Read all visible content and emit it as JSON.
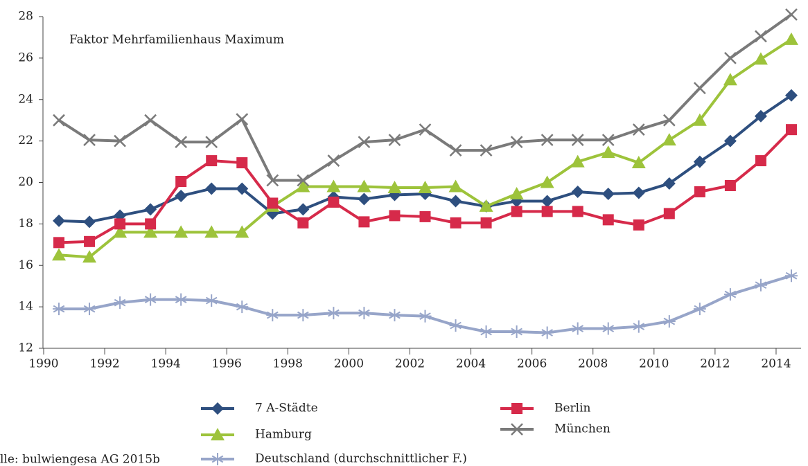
{
  "chart_data": {
    "type": "line",
    "annotation": "Faktor Mehrfamilienhaus Maximum",
    "source": "lle: bulwiengesa AG 2015b",
    "x": [
      1990.5,
      1991.5,
      1992.5,
      1993.5,
      1994.5,
      1995.5,
      1996.5,
      1997.5,
      1998.5,
      1999.5,
      2000.5,
      2001.5,
      2002.5,
      2003.5,
      2004.5,
      2005.5,
      2006.5,
      2007.5,
      2008.5,
      2009.5,
      2010.5,
      2011.5,
      2012.5,
      2013.5,
      2014.5
    ],
    "xlim": [
      1990,
      2015
    ],
    "xticks": [
      1990,
      1992,
      1994,
      1996,
      1998,
      2000,
      2002,
      2004,
      2006,
      2008,
      2010,
      2012,
      2014
    ],
    "ylim": [
      12,
      28
    ],
    "yticks": [
      12,
      14,
      16,
      18,
      20,
      22,
      24,
      26,
      28
    ],
    "series": [
      {
        "name": "7 A-Städte",
        "color": "#2e4f7f",
        "marker": "diamond",
        "values": [
          18.15,
          18.1,
          18.4,
          18.7,
          19.35,
          19.7,
          19.7,
          18.5,
          18.7,
          19.3,
          19.2,
          19.4,
          19.45,
          19.1,
          18.85,
          19.1,
          19.1,
          19.55,
          19.45,
          19.5,
          19.95,
          21.0,
          22.0,
          23.2,
          24.2
        ]
      },
      {
        "name": "Hamburg",
        "color": "#9dc33b",
        "marker": "triangle",
        "values": [
          16.5,
          16.4,
          17.6,
          17.6,
          17.6,
          17.6,
          17.6,
          18.85,
          19.8,
          19.8,
          19.8,
          19.75,
          19.75,
          19.8,
          18.85,
          19.45,
          20.0,
          21.0,
          21.45,
          20.95,
          22.05,
          23.0,
          24.95,
          25.95,
          26.9
        ]
      },
      {
        "name": "Deutschland (durchschnittlicher F.)",
        "color": "#97a5c9",
        "marker": "asterisk",
        "values": [
          13.9,
          13.9,
          14.2,
          14.35,
          14.35,
          14.3,
          14.0,
          13.6,
          13.6,
          13.7,
          13.7,
          13.6,
          13.55,
          13.1,
          12.8,
          12.8,
          12.75,
          12.95,
          12.95,
          13.05,
          13.3,
          13.9,
          14.6,
          15.05,
          15.5
        ]
      },
      {
        "name": "Berlin",
        "color": "#d62a4a",
        "marker": "square",
        "values": [
          17.1,
          17.15,
          18.0,
          18.0,
          20.05,
          21.05,
          20.95,
          19.0,
          18.05,
          19.05,
          18.1,
          18.4,
          18.35,
          18.05,
          18.05,
          18.6,
          18.6,
          18.6,
          18.2,
          17.95,
          18.5,
          19.55,
          19.85,
          21.05,
          22.55
        ]
      },
      {
        "name": "München",
        "color": "#7a7a7a",
        "marker": "x",
        "values": [
          23.0,
          22.05,
          22.0,
          23.0,
          21.95,
          21.95,
          23.05,
          20.1,
          20.1,
          21.05,
          21.95,
          22.05,
          22.55,
          21.55,
          21.55,
          21.95,
          22.05,
          22.05,
          22.05,
          22.55,
          23.0,
          24.55,
          26.0,
          27.05,
          28.1
        ]
      }
    ]
  }
}
